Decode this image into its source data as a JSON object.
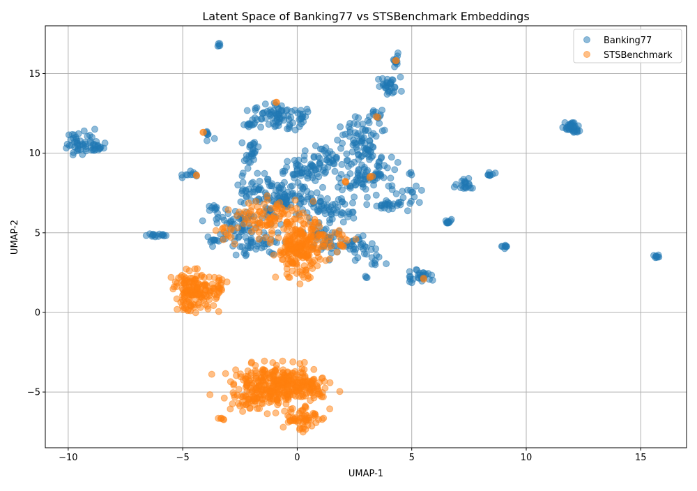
{
  "chart_data": {
    "type": "scatter",
    "title": "Latent Space of Banking77 vs STSBenchmark Embeddings",
    "xlabel": "UMAP-1",
    "ylabel": "UMAP-2",
    "xlim": [
      -11,
      17
    ],
    "ylim": [
      -8.5,
      18
    ],
    "xticks": [
      -10,
      -5,
      0,
      5,
      10,
      15
    ],
    "yticks": [
      -5,
      0,
      5,
      10,
      15
    ],
    "xtick_labels": [
      "−10",
      "−5",
      "0",
      "5",
      "10",
      "15"
    ],
    "ytick_labels": [
      "−5",
      "0",
      "5",
      "10",
      "15"
    ],
    "grid": true,
    "legend_position": "top-right",
    "series": [
      {
        "name": "Banking77",
        "color": "#1f77b4",
        "clusters": [
          {
            "x": -3.4,
            "y": 16.8,
            "n": 5,
            "sx": 0.05,
            "sy": 0.05
          },
          {
            "x": 4.3,
            "y": 15.7,
            "n": 12,
            "sx": 0.1,
            "sy": 0.2
          },
          {
            "x": 4.0,
            "y": 14.2,
            "n": 30,
            "sx": 0.25,
            "sy": 0.3
          },
          {
            "x": 3.5,
            "y": 12.4,
            "n": 10,
            "sx": 0.15,
            "sy": 0.15
          },
          {
            "x": -0.9,
            "y": 12.3,
            "n": 70,
            "sx": 0.5,
            "sy": 0.4
          },
          {
            "x": 0.3,
            "y": 12.3,
            "n": 10,
            "sx": 0.15,
            "sy": 0.25
          },
          {
            "x": -2.0,
            "y": 11.8,
            "n": 10,
            "sx": 0.1,
            "sy": 0.1
          },
          {
            "x": -3.9,
            "y": 11.2,
            "n": 8,
            "sx": 0.2,
            "sy": 0.2
          },
          {
            "x": -9.4,
            "y": 10.7,
            "n": 45,
            "sx": 0.4,
            "sy": 0.4
          },
          {
            "x": -8.7,
            "y": 10.4,
            "n": 15,
            "sx": 0.15,
            "sy": 0.2
          },
          {
            "x": -4.8,
            "y": 8.6,
            "n": 10,
            "sx": 0.2,
            "sy": 0.15
          },
          {
            "x": -3.7,
            "y": 6.7,
            "n": 6,
            "sx": 0.1,
            "sy": 0.1
          },
          {
            "x": -6.2,
            "y": 4.85,
            "n": 15,
            "sx": 0.2,
            "sy": 0.06
          },
          {
            "x": -3.6,
            "y": 4.5,
            "n": 8,
            "sx": 0.15,
            "sy": 0.05
          },
          {
            "x": -2.0,
            "y": 10.0,
            "n": 25,
            "sx": 0.15,
            "sy": 0.4
          },
          {
            "x": 2.6,
            "y": 11.3,
            "n": 40,
            "sx": 0.5,
            "sy": 0.5
          },
          {
            "x": 2.9,
            "y": 10.2,
            "n": 30,
            "sx": 0.3,
            "sy": 0.4
          },
          {
            "x": 1.3,
            "y": 9.8,
            "n": 25,
            "sx": 0.4,
            "sy": 0.4
          },
          {
            "x": 0.2,
            "y": 8.9,
            "n": 60,
            "sx": 0.6,
            "sy": 0.4
          },
          {
            "x": 2.9,
            "y": 8.6,
            "n": 90,
            "sx": 0.8,
            "sy": 0.6
          },
          {
            "x": -1.5,
            "y": 7.8,
            "n": 40,
            "sx": 0.6,
            "sy": 0.5
          },
          {
            "x": -0.6,
            "y": 7.1,
            "n": 70,
            "sx": 0.7,
            "sy": 0.4
          },
          {
            "x": 1.2,
            "y": 6.4,
            "n": 60,
            "sx": 0.6,
            "sy": 0.4
          },
          {
            "x": -2.4,
            "y": 5.6,
            "n": 70,
            "sx": 0.8,
            "sy": 0.6
          },
          {
            "x": -1.8,
            "y": 4.3,
            "n": 40,
            "sx": 0.6,
            "sy": 0.4
          },
          {
            "x": 1.2,
            "y": 4.6,
            "n": 40,
            "sx": 0.5,
            "sy": 0.5
          },
          {
            "x": 2.6,
            "y": 4.3,
            "n": 25,
            "sx": 0.4,
            "sy": 0.3
          },
          {
            "x": 3.3,
            "y": 3.6,
            "n": 15,
            "sx": 0.3,
            "sy": 0.3
          },
          {
            "x": 3.0,
            "y": 2.2,
            "n": 3,
            "sx": 0.05,
            "sy": 0.05
          },
          {
            "x": 3.9,
            "y": 6.8,
            "n": 25,
            "sx": 0.4,
            "sy": 0.2
          },
          {
            "x": 4.8,
            "y": 7.4,
            "n": 15,
            "sx": 0.3,
            "sy": 0.3
          },
          {
            "x": 5.4,
            "y": 2.3,
            "n": 30,
            "sx": 0.3,
            "sy": 0.25
          },
          {
            "x": 6.6,
            "y": 5.7,
            "n": 10,
            "sx": 0.1,
            "sy": 0.08
          },
          {
            "x": 7.4,
            "y": 8.0,
            "n": 20,
            "sx": 0.25,
            "sy": 0.15
          },
          {
            "x": 8.4,
            "y": 8.65,
            "n": 8,
            "sx": 0.1,
            "sy": 0.06
          },
          {
            "x": 9.1,
            "y": 4.15,
            "n": 8,
            "sx": 0.1,
            "sy": 0.06
          },
          {
            "x": 12.0,
            "y": 11.6,
            "n": 35,
            "sx": 0.15,
            "sy": 0.2
          },
          {
            "x": 15.7,
            "y": 3.5,
            "n": 8,
            "sx": 0.1,
            "sy": 0.08
          }
        ]
      },
      {
        "name": "STSBenchmark",
        "color": "#ff7f0e",
        "clusters": [
          {
            "x": 4.3,
            "y": 15.8,
            "n": 2,
            "sx": 0.02,
            "sy": 0.02
          },
          {
            "x": -0.9,
            "y": 13.2,
            "n": 2,
            "sx": 0.02,
            "sy": 0.02
          },
          {
            "x": -4.1,
            "y": 11.3,
            "n": 2,
            "sx": 0.02,
            "sy": 0.02
          },
          {
            "x": -4.4,
            "y": 8.6,
            "n": 2,
            "sx": 0.02,
            "sy": 0.02
          },
          {
            "x": 3.5,
            "y": 12.3,
            "n": 2,
            "sx": 0.05,
            "sy": 0.05
          },
          {
            "x": 2.1,
            "y": 8.2,
            "n": 3,
            "sx": 0.05,
            "sy": 0.05
          },
          {
            "x": -1.2,
            "y": 6.0,
            "n": 80,
            "sx": 0.6,
            "sy": 0.5
          },
          {
            "x": 0.1,
            "y": 4.0,
            "n": 220,
            "sx": 0.5,
            "sy": 0.9
          },
          {
            "x": 1.5,
            "y": 4.5,
            "n": 30,
            "sx": 0.5,
            "sy": 0.5
          },
          {
            "x": -3.1,
            "y": 5.0,
            "n": 15,
            "sx": 0.4,
            "sy": 0.4
          },
          {
            "x": -4.5,
            "y": 1.3,
            "n": 150,
            "sx": 0.45,
            "sy": 0.6
          },
          {
            "x": -3.4,
            "y": 1.7,
            "n": 20,
            "sx": 0.2,
            "sy": 0.3
          },
          {
            "x": -1.0,
            "y": -4.6,
            "n": 300,
            "sx": 0.9,
            "sy": 0.6
          },
          {
            "x": 0.5,
            "y": -4.5,
            "n": 60,
            "sx": 0.5,
            "sy": 0.4
          },
          {
            "x": 0.1,
            "y": -6.6,
            "n": 60,
            "sx": 0.4,
            "sy": 0.45
          },
          {
            "x": -2.3,
            "y": -5.6,
            "n": 25,
            "sx": 0.45,
            "sy": 0.35
          },
          {
            "x": -3.3,
            "y": -6.7,
            "n": 5,
            "sx": 0.1,
            "sy": 0.05
          },
          {
            "x": 5.5,
            "y": 2.1,
            "n": 2,
            "sx": 0.05,
            "sy": 0.05
          },
          {
            "x": 3.2,
            "y": 8.5,
            "n": 3,
            "sx": 0.05,
            "sy": 0.05
          }
        ]
      }
    ]
  }
}
